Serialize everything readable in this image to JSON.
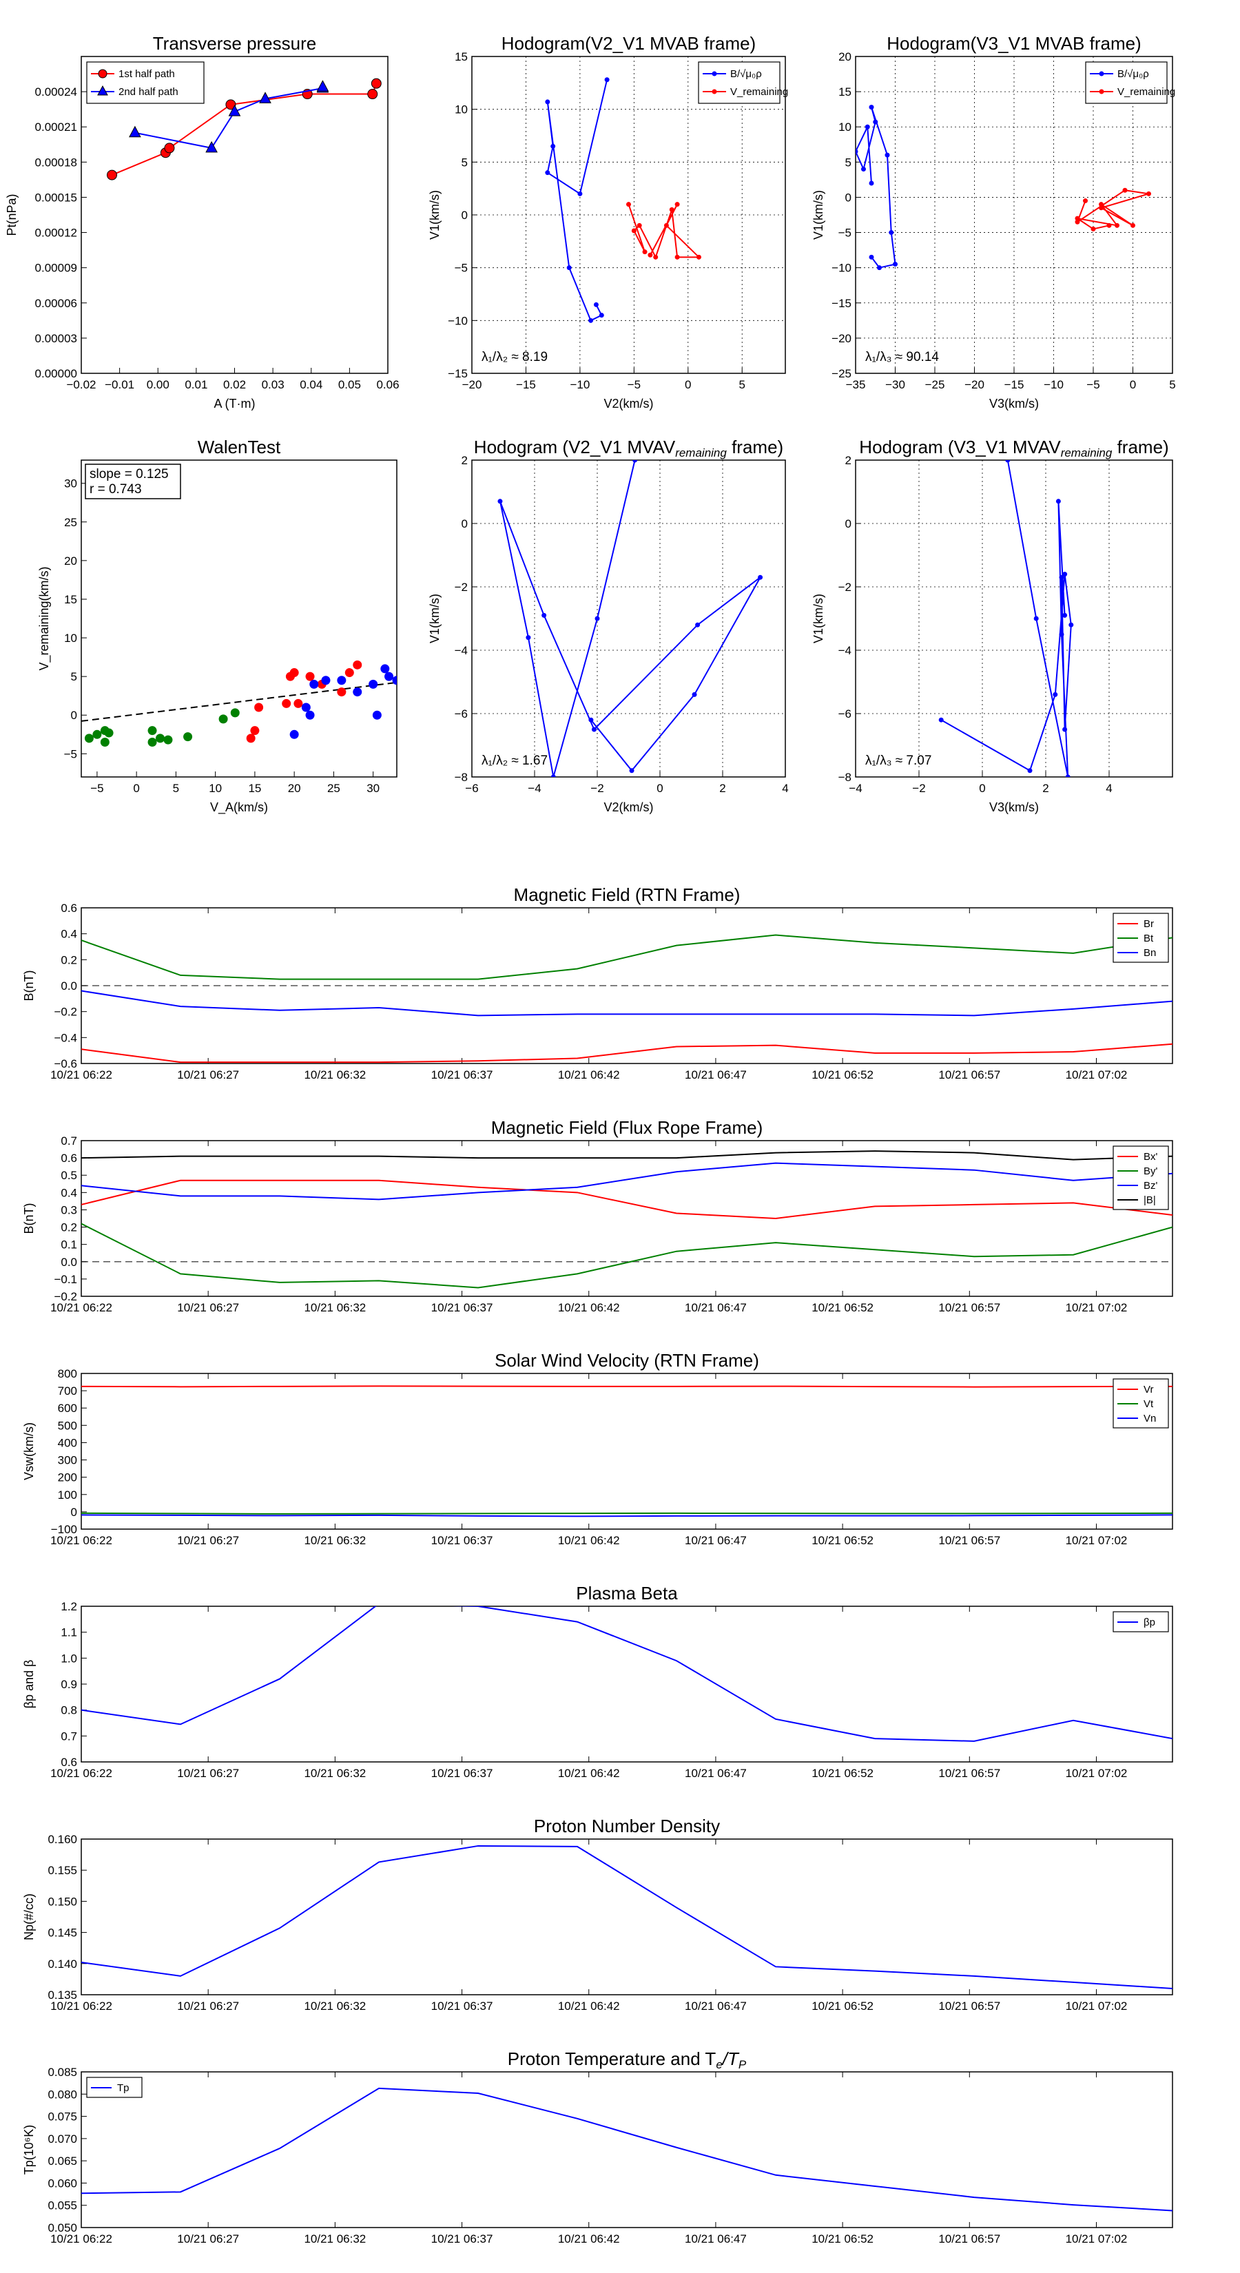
{
  "chart_data": [
    {
      "type": "scatter",
      "title": "Transverse pressure",
      "xlabel": "A (T·m)",
      "ylabel": "Pt(nPa)",
      "xlim": [
        -0.02,
        0.06
      ],
      "ylim": [
        0,
        0.00027
      ],
      "xticks": [
        -0.02,
        -0.01,
        0.0,
        0.01,
        0.02,
        0.03,
        0.04,
        0.05,
        0.06
      ],
      "xticklabels": [
        "−0.02",
        "−0.01",
        "0.00",
        "0.01",
        "0.02",
        "0.03",
        "0.04",
        "0.05",
        "0.06"
      ],
      "yticks": [
        0,
        3e-05,
        6e-05,
        9e-05,
        0.00012,
        0.00015,
        0.00018,
        0.00021,
        0.00024
      ],
      "yticklabels": [
        "0.00000",
        "0.00003",
        "0.00006",
        "0.00009",
        "0.00012",
        "0.00015",
        "0.00018",
        "0.00021",
        "0.00024"
      ],
      "grid": false,
      "legend": "top-left",
      "series": [
        {
          "name": "1st half path",
          "color": "#ff0000",
          "marker": "circle",
          "x": [
            -0.012,
            0.002,
            0.003,
            0.019,
            0.039,
            0.056,
            0.057
          ],
          "y": [
            0.000169,
            0.000188,
            0.000192,
            0.000229,
            0.000238,
            0.000238,
            0.000247
          ]
        },
        {
          "name": "2nd half path",
          "color": "#0000ff",
          "marker": "triangle",
          "x": [
            -0.006,
            0.014,
            0.02,
            0.028,
            0.043,
            0.043
          ],
          "y": [
            0.000205,
            0.000192,
            0.000223,
            0.000234,
            0.000243,
            0.000244
          ]
        }
      ]
    },
    {
      "type": "line",
      "title": "Hodogram(V2_V1 MVAB frame)",
      "xlabel": "V2(km/s)",
      "ylabel": "V1(km/s)",
      "xlim": [
        -20,
        9
      ],
      "ylim": [
        -15,
        15
      ],
      "xticks": [
        -20,
        -15,
        -10,
        -5,
        0,
        5
      ],
      "xticklabels": [
        "−20",
        "−15",
        "−10",
        "−5",
        "0",
        "5"
      ],
      "yticks": [
        -15,
        -10,
        -5,
        0,
        5,
        10,
        15
      ],
      "yticklabels": [
        "−15",
        "−10",
        "−5",
        "0",
        "5",
        "10",
        "15"
      ],
      "grid": true,
      "legend": "top-right",
      "annotation": "λ₁/λ₂ ≈ 8.19",
      "series": [
        {
          "name": "B/√μ₀ρ",
          "color": "#0000ff",
          "x": [
            -7.5,
            -10,
            -13,
            -12.5,
            -13,
            -11,
            -9,
            -8,
            -8.5
          ],
          "y": [
            12.8,
            2,
            4,
            6.5,
            10.7,
            -5,
            -10,
            -9.5,
            -8.5
          ]
        },
        {
          "name": "V_remaining",
          "color": "#ff0000",
          "x": [
            -5.5,
            -4,
            -5,
            -4.5,
            -3,
            -1.5,
            -1,
            1,
            -2,
            -1,
            -3.5
          ],
          "y": [
            1,
            -3.5,
            -1.5,
            -1,
            -4,
            0.5,
            -4,
            -4,
            -1,
            1,
            -3.8
          ]
        }
      ]
    },
    {
      "type": "line",
      "title": "Hodogram(V3_V1 MVAB frame)",
      "xlabel": "V3(km/s)",
      "ylabel": "V1(km/s)",
      "xlim": [
        -35,
        5
      ],
      "ylim": [
        -25,
        20
      ],
      "xticks": [
        -35,
        -30,
        -25,
        -20,
        -15,
        -10,
        -5,
        0,
        5
      ],
      "xticklabels": [
        "−35",
        "−30",
        "−25",
        "−20",
        "−15",
        "−10",
        "−5",
        "0",
        "5"
      ],
      "yticks": [
        -25,
        -20,
        -15,
        -10,
        -5,
        0,
        5,
        10,
        15,
        20
      ],
      "yticklabels": [
        "−25",
        "−20",
        "−15",
        "−10",
        "−5",
        "0",
        "5",
        "10",
        "15",
        "20"
      ],
      "grid": true,
      "legend": "top-right",
      "annotation": "λ₁/λ₃ ≈ 90.14",
      "series": [
        {
          "name": "B/√μ₀ρ",
          "color": "#0000ff",
          "x": [
            -33,
            -33.5,
            -35,
            -34,
            -32.5,
            -33,
            -31,
            -30.5,
            -30,
            -32,
            -33
          ],
          "y": [
            2,
            10,
            6.5,
            4,
            10.7,
            12.8,
            6,
            -5,
            -9.5,
            -10,
            -8.5
          ]
        },
        {
          "name": "V_remaining",
          "color": "#ff0000",
          "x": [
            -6,
            -7,
            -1,
            2,
            -4,
            0,
            -4,
            -2,
            -7,
            -5,
            -3
          ],
          "y": [
            -0.5,
            -3.5,
            1,
            0.5,
            -1.5,
            -4,
            -1,
            -4,
            -3,
            -4.5,
            -4
          ]
        }
      ]
    },
    {
      "type": "scatter",
      "title": "WalenTest",
      "xlabel": "V_A(km/s)",
      "ylabel": "V_remaining(km/s)",
      "xlim": [
        -7,
        33
      ],
      "ylim": [
        -8,
        33
      ],
      "xticks": [
        -5,
        0,
        5,
        10,
        15,
        20,
        25,
        30
      ],
      "xticklabels": [
        "−5",
        "0",
        "5",
        "10",
        "15",
        "20",
        "25",
        "30"
      ],
      "yticks": [
        -5,
        0,
        5,
        10,
        15,
        20,
        25,
        30
      ],
      "yticklabels": [
        "−5",
        "0",
        "5",
        "10",
        "15",
        "20",
        "25",
        "30"
      ],
      "grid": false,
      "annotation_lines": [
        "slope = 0.125",
        "r = 0.743"
      ],
      "fit_line": {
        "slope": 0.125,
        "intercept": 0.1
      },
      "series": [
        {
          "color": "#008000",
          "x": [
            -6,
            -5,
            -4,
            -4,
            -3.5,
            2,
            2,
            3,
            4,
            6.5,
            11,
            12.5
          ],
          "y": [
            -3,
            -2.5,
            -2,
            -3.5,
            -2.3,
            -3.5,
            -2,
            -3,
            -3.2,
            -2.8,
            -0.5,
            0.3
          ]
        },
        {
          "color": "#ff0000",
          "x": [
            14.5,
            15,
            15.5,
            19,
            19.5,
            20,
            20.5,
            22,
            23.5,
            26,
            27,
            28
          ],
          "y": [
            -3,
            -2,
            1,
            1.5,
            5,
            5.5,
            1.5,
            5,
            4,
            3,
            5.5,
            6.5
          ]
        },
        {
          "color": "#0000ff",
          "x": [
            20,
            21.5,
            22,
            22.5,
            24,
            26,
            28,
            30,
            30.5,
            31.5,
            32,
            33
          ],
          "y": [
            -2.5,
            1,
            0,
            4,
            4.5,
            4.5,
            3,
            4,
            0,
            6,
            5,
            4.5
          ]
        }
      ]
    },
    {
      "type": "line",
      "title": "Hodogram (V2_V1 MVAV",
      "title_sub": "remaining",
      "title_end": " frame)",
      "xlabel": "V2(km/s)",
      "ylabel": "V1(km/s)",
      "xlim": [
        -6,
        4
      ],
      "ylim": [
        -8,
        2
      ],
      "xticks": [
        -6,
        -4,
        -2,
        0,
        2,
        4
      ],
      "xticklabels": [
        "−6",
        "−4",
        "−2",
        "0",
        "2",
        "4"
      ],
      "yticks": [
        -8,
        -6,
        -4,
        -2,
        0,
        2
      ],
      "yticklabels": [
        "−8",
        "−6",
        "−4",
        "−2",
        "0",
        "2"
      ],
      "grid": true,
      "annotation": "λ₁/λ₂ ≈ 1.67",
      "series": [
        {
          "color": "#0000ff",
          "x": [
            -0.8,
            -2,
            -3.4,
            -4.2,
            -5.1,
            -3.7,
            -2.1,
            1.2,
            3.2,
            1.1,
            -0.9,
            -2.2
          ],
          "y": [
            2,
            -3,
            -8,
            -3.6,
            0.7,
            -2.9,
            -6.5,
            -3.2,
            -1.7,
            -5.4,
            -7.8,
            -6.2
          ]
        }
      ]
    },
    {
      "type": "line",
      "title": "Hodogram (V3_V1 MVAV",
      "title_sub": "remaining",
      "title_end": " frame)",
      "xlabel": "V3(km/s)",
      "ylabel": "V1(km/s)",
      "xlim": [
        -4,
        6
      ],
      "ylim": [
        -8,
        2
      ],
      "xticks": [
        -4,
        -2,
        0,
        2,
        4
      ],
      "xticklabels": [
        "−4",
        "−2",
        "0",
        "2",
        "4"
      ],
      "yticks": [
        -8,
        -6,
        -4,
        -2,
        0,
        2
      ],
      "yticklabels": [
        "−8",
        "−6",
        "−4",
        "−2",
        "0",
        "2"
      ],
      "grid": true,
      "annotation": "λ₁/λ₃ ≈ 7.07",
      "series": [
        {
          "color": "#0000ff",
          "x": [
            0.8,
            1.7,
            2.7,
            2.5,
            2.4,
            2.6,
            2.5,
            2.6,
            2.8,
            2.6,
            2.3,
            1.5,
            -1.3
          ],
          "y": [
            2,
            -3,
            -8,
            -3.5,
            0.7,
            -2.9,
            -1.7,
            -6.5,
            -3.2,
            -1.6,
            -5.4,
            -7.8,
            -6.2
          ]
        }
      ]
    },
    {
      "type": "line",
      "title": "Magnetic Field (RTN Frame)",
      "ylabel": "B(nT)",
      "ylim": [
        -0.6,
        0.6
      ],
      "yticks": [
        -0.6,
        -0.4,
        -0.2,
        0.0,
        0.2,
        0.4,
        0.6
      ],
      "yticklabels": [
        "−0.6",
        "−0.4",
        "−0.2",
        "0.0",
        "0.2",
        "0.4",
        "0.6"
      ],
      "legend": "top-right",
      "zero_line": true,
      "series": [
        {
          "name": "Br",
          "color": "#ff0000",
          "values": [
            -0.49,
            -0.59,
            -0.59,
            -0.59,
            -0.58,
            -0.56,
            -0.47,
            -0.46,
            -0.52,
            -0.52,
            -0.51,
            -0.45
          ]
        },
        {
          "name": "Bt",
          "color": "#008000",
          "values": [
            0.35,
            0.08,
            0.05,
            0.05,
            0.05,
            0.13,
            0.31,
            0.39,
            0.33,
            0.29,
            0.25,
            0.37
          ]
        },
        {
          "name": "Bn",
          "color": "#0000ff",
          "values": [
            -0.04,
            -0.16,
            -0.19,
            -0.17,
            -0.23,
            -0.22,
            -0.22,
            -0.22,
            -0.22,
            -0.23,
            -0.18,
            -0.12
          ]
        }
      ]
    },
    {
      "type": "line",
      "title": "Magnetic Field (Flux Rope Frame)",
      "ylabel": "B(nT)",
      "ylim": [
        -0.2,
        0.7
      ],
      "yticks": [
        -0.2,
        -0.1,
        0.0,
        0.1,
        0.2,
        0.3,
        0.4,
        0.5,
        0.6,
        0.7
      ],
      "yticklabels": [
        "−0.2",
        "−0.1",
        "0.0",
        "0.1",
        "0.2",
        "0.3",
        "0.4",
        "0.5",
        "0.6",
        "0.7"
      ],
      "legend": "top-right",
      "zero_line": true,
      "series": [
        {
          "name": "Bx'",
          "color": "#ff0000",
          "values": [
            0.33,
            0.47,
            0.47,
            0.47,
            0.43,
            0.4,
            0.28,
            0.25,
            0.32,
            0.33,
            0.34,
            0.27
          ]
        },
        {
          "name": "By'",
          "color": "#008000",
          "values": [
            0.22,
            -0.07,
            -0.12,
            -0.11,
            -0.15,
            -0.07,
            0.06,
            0.11,
            0.07,
            0.03,
            0.04,
            0.2
          ]
        },
        {
          "name": "Bz'",
          "color": "#0000ff",
          "values": [
            0.44,
            0.38,
            0.38,
            0.36,
            0.4,
            0.43,
            0.52,
            0.57,
            0.55,
            0.53,
            0.47,
            0.51
          ]
        },
        {
          "name": "|B|",
          "color": "#000000",
          "values": [
            0.6,
            0.61,
            0.61,
            0.61,
            0.6,
            0.6,
            0.6,
            0.63,
            0.64,
            0.63,
            0.59,
            0.61
          ]
        }
      ]
    },
    {
      "type": "line",
      "title": "Solar Wind Velocity (RTN Frame)",
      "ylabel": "Vsw(km/s)",
      "ylim": [
        -100,
        800
      ],
      "yticks": [
        -100,
        0,
        100,
        200,
        300,
        400,
        500,
        600,
        700,
        800
      ],
      "yticklabels": [
        "−100",
        "0",
        "100",
        "200",
        "300",
        "400",
        "500",
        "600",
        "700",
        "800"
      ],
      "legend": "top-right",
      "series": [
        {
          "name": "Vr",
          "color": "#ff0000",
          "values": [
            725,
            723,
            725,
            727,
            726,
            725,
            725,
            726,
            724,
            722,
            724,
            725
          ]
        },
        {
          "name": "Vt",
          "color": "#008000",
          "values": [
            -8,
            -10,
            -12,
            -11,
            -10,
            -9,
            -8,
            -9,
            -10,
            -10,
            -9,
            -8
          ]
        },
        {
          "name": "Vn",
          "color": "#0000ff",
          "values": [
            -18,
            -20,
            -22,
            -20,
            -24,
            -26,
            -24,
            -23,
            -23,
            -22,
            -20,
            -18
          ]
        }
      ]
    },
    {
      "type": "line",
      "title": "Plasma Beta",
      "ylabel": "βp and β",
      "ylim": [
        0.6,
        1.2
      ],
      "yticks": [
        0.6,
        0.7,
        0.8,
        0.9,
        1.0,
        1.1,
        1.2
      ],
      "yticklabels": [
        "0.6",
        "0.7",
        "0.8",
        "0.9",
        "1.0",
        "1.1",
        "1.2"
      ],
      "legend": "top-right",
      "series": [
        {
          "name": "βp",
          "color": "#0000ff",
          "values": [
            0.8,
            0.745,
            0.92,
            1.21,
            1.2,
            1.14,
            0.99,
            0.765,
            0.69,
            0.68,
            0.76,
            0.69
          ]
        }
      ]
    },
    {
      "type": "line",
      "title": "Proton Number Density",
      "ylabel": "Np(#/cc)",
      "ylim": [
        0.135,
        0.16
      ],
      "yticks": [
        0.135,
        0.14,
        0.145,
        0.15,
        0.155,
        0.16
      ],
      "yticklabels": [
        "0.135",
        "0.140",
        "0.145",
        "0.150",
        "0.155",
        "0.160"
      ],
      "series": [
        {
          "color": "#0000ff",
          "values": [
            0.1402,
            0.138,
            0.1457,
            0.1563,
            0.1589,
            0.1588,
            0.149,
            0.1395,
            0.1388,
            0.138,
            0.137,
            0.136
          ]
        }
      ]
    },
    {
      "type": "line",
      "title": "Proton Temperature and T",
      "title_sub": "e",
      "title_mid": "/T",
      "title_sub2": "P",
      "ylabel": "Tp(10⁶K)",
      "ylim": [
        0.05,
        0.085
      ],
      "yticks": [
        0.05,
        0.055,
        0.06,
        0.065,
        0.07,
        0.075,
        0.08,
        0.085
      ],
      "yticklabels": [
        "0.050",
        "0.055",
        "0.060",
        "0.065",
        "0.070",
        "0.075",
        "0.080",
        "0.085"
      ],
      "legend": "top-left",
      "series": [
        {
          "name": "Tp",
          "color": "#0000ff",
          "values": [
            0.0577,
            0.058,
            0.0678,
            0.0813,
            0.0802,
            0.0745,
            0.068,
            0.0618,
            0.0593,
            0.0568,
            0.0551,
            0.0538
          ]
        }
      ]
    }
  ],
  "time_axis": {
    "labels": [
      "10/21 06:22",
      "10/21 06:27",
      "10/21 06:32",
      "10/21 06:37",
      "10/21 06:42",
      "10/21 06:47",
      "10/21 06:52",
      "10/21 06:57",
      "10/21 07:02"
    ],
    "samples": 12
  }
}
